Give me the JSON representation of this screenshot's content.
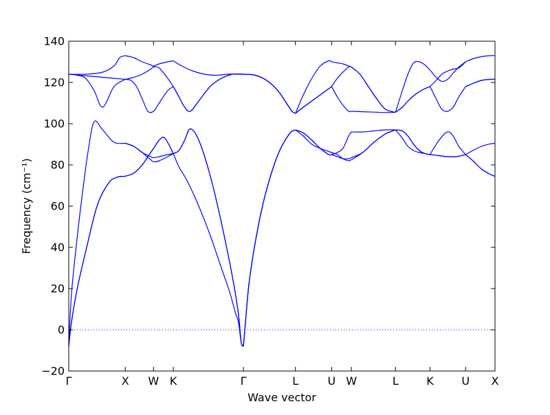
{
  "chart_data": {
    "type": "line",
    "title": "",
    "xlabel": "Wave vector",
    "ylabel": "Frequency (cm⁻¹)",
    "ylim": [
      -20,
      140
    ],
    "yticks": [
      -20,
      0,
      20,
      40,
      60,
      80,
      100,
      120,
      140
    ],
    "xlim": [
      0,
      7.54
    ],
    "xticks": [
      {
        "label": "Γ",
        "x": 0.0
      },
      {
        "label": "X",
        "x": 1.0
      },
      {
        "label": "W",
        "x": 1.5
      },
      {
        "label": "K",
        "x": 1.85
      },
      {
        "label": "Γ",
        "x": 3.09
      },
      {
        "label": "L",
        "x": 4.01
      },
      {
        "label": "U",
        "x": 4.65
      },
      {
        "label": "W",
        "x": 5.0
      },
      {
        "label": "L",
        "x": 5.78
      },
      {
        "label": "K",
        "x": 6.39
      },
      {
        "label": "U",
        "x": 7.02
      },
      {
        "label": "X",
        "x": 7.54
      }
    ],
    "zero_line": {
      "y": 0,
      "style": "dotted"
    },
    "line_color": "#0000ff",
    "grid": false,
    "series": [
      {
        "x": [
          0,
          0.05,
          0.15,
          0.3,
          0.5,
          0.7,
          0.85,
          1.0
        ],
        "y": [
          -8,
          4,
          20,
          38,
          60,
          71,
          74,
          74.5
        ]
      },
      {
        "x": [
          0,
          0.05,
          0.15,
          0.3,
          0.5,
          0.7,
          0.85,
          1.0
        ],
        "y": [
          -8,
          4,
          20,
          38,
          60,
          71,
          74,
          74.5
        ]
      },
      {
        "x": [
          0,
          0.05,
          0.15,
          0.25,
          0.35,
          0.45,
          0.6,
          0.8,
          1.0
        ],
        "y": [
          -8,
          18,
          45,
          68,
          88,
          101,
          97,
          91,
          90.5
        ]
      },
      {
        "x": [
          0,
          0.15,
          0.3,
          0.45,
          0.6,
          0.8,
          1.0
        ],
        "y": [
          124,
          123.5,
          122,
          116,
          108,
          118,
          121.5
        ]
      },
      {
        "x": [
          0,
          0.2,
          0.4,
          0.6,
          0.8,
          1.0
        ],
        "y": [
          124,
          123.5,
          123,
          122.5,
          122,
          121.5
        ]
      },
      {
        "x": [
          0,
          0.3,
          0.6,
          0.8,
          0.9,
          1.0
        ],
        "y": [
          124,
          124,
          125,
          128,
          132,
          133
        ]
      },
      {
        "x": [
          1.0,
          1.15,
          1.3,
          1.4,
          1.5,
          1.6,
          1.7,
          1.85
        ],
        "y": [
          74.5,
          76,
          80,
          84,
          88,
          92,
          93,
          85.5
        ]
      },
      {
        "x": [
          1.0,
          1.15,
          1.3,
          1.4,
          1.5,
          1.6,
          1.7,
          1.85
        ],
        "y": [
          74.5,
          76,
          80,
          84,
          88,
          92,
          93,
          85.5
        ]
      },
      {
        "x": [
          1.0,
          1.15,
          1.3,
          1.45,
          1.5,
          1.6,
          1.75,
          1.85
        ],
        "y": [
          90.5,
          89,
          86,
          82.5,
          81.5,
          82,
          84,
          85.5
        ]
      },
      {
        "x": [
          1.0,
          1.15,
          1.3,
          1.45,
          1.5,
          1.6,
          1.75,
          1.85
        ],
        "y": [
          90.5,
          89,
          86,
          84,
          83.5,
          84,
          85,
          85.5
        ]
      },
      {
        "x": [
          1.0,
          1.1,
          1.2,
          1.3,
          1.4,
          1.5,
          1.6,
          1.75,
          1.85
        ],
        "y": [
          121.5,
          121,
          118,
          112,
          106,
          106,
          110,
          116,
          118
        ]
      },
      {
        "x": [
          1.0,
          1.15,
          1.3,
          1.45,
          1.5,
          1.6,
          1.75,
          1.85
        ],
        "y": [
          121.5,
          122.5,
          124,
          126.5,
          127.5,
          127,
          122,
          118
        ]
      },
      {
        "x": [
          1.0,
          1.15,
          1.3,
          1.45,
          1.5,
          1.6,
          1.75,
          1.85
        ],
        "y": [
          133,
          132,
          130,
          128.5,
          128,
          129,
          130,
          130.5
        ]
      },
      {
        "x": [
          1.85,
          1.95,
          2.05,
          2.15,
          2.3,
          2.5,
          2.7,
          2.9,
          3.0,
          3.05,
          3.09
        ],
        "y": [
          85.5,
          87,
          92,
          97.5,
          92,
          75,
          52,
          25,
          8,
          -6,
          -8
        ]
      },
      {
        "x": [
          1.85,
          1.95,
          2.05,
          2.15,
          2.3,
          2.5,
          2.7,
          2.9,
          3.0,
          3.05,
          3.09
        ],
        "y": [
          85.5,
          87,
          92,
          97.5,
          92,
          75,
          52,
          25,
          8,
          -6,
          -8
        ]
      },
      {
        "x": [
          1.85,
          1.95,
          2.1,
          2.3,
          2.5,
          2.7,
          2.85,
          2.95,
          3.0,
          3.05,
          3.09
        ],
        "y": [
          85.5,
          79,
          72,
          60,
          46,
          30,
          18,
          8,
          4,
          -6,
          -8
        ]
      },
      {
        "x": [
          1.85,
          1.95,
          2.05,
          2.15,
          2.3,
          2.5,
          2.7,
          2.9,
          3.09
        ],
        "y": [
          118,
          113,
          108,
          106,
          111,
          118,
          122,
          124,
          124
        ]
      },
      {
        "x": [
          1.85,
          1.95,
          2.05,
          2.15,
          2.3,
          2.5,
          2.7,
          2.9,
          3.09
        ],
        "y": [
          118,
          113,
          108,
          106,
          111,
          118,
          122,
          124,
          124
        ]
      },
      {
        "x": [
          1.85,
          2.0,
          2.2,
          2.4,
          2.6,
          2.8,
          3.0,
          3.09
        ],
        "y": [
          130.5,
          128,
          125.5,
          124,
          123.5,
          124,
          124,
          124
        ]
      },
      {
        "x": [
          3.09,
          3.13,
          3.2,
          3.35,
          3.5,
          3.7,
          3.9,
          4.01
        ],
        "y": [
          -8,
          5,
          25,
          50,
          68,
          85,
          95,
          97
        ]
      },
      {
        "x": [
          3.09,
          3.13,
          3.2,
          3.35,
          3.5,
          3.7,
          3.9,
          4.01
        ],
        "y": [
          -8,
          5,
          25,
          50,
          68,
          85,
          95,
          97
        ]
      },
      {
        "x": [
          3.09,
          3.13,
          3.2,
          3.35,
          3.5,
          3.7,
          3.9,
          4.01
        ],
        "y": [
          -8,
          5,
          25,
          50,
          68,
          85,
          95,
          97
        ]
      },
      {
        "x": [
          3.09,
          3.3,
          3.5,
          3.7,
          3.85,
          3.95,
          4.01
        ],
        "y": [
          124,
          123.5,
          121,
          116,
          110,
          106,
          105
        ]
      },
      {
        "x": [
          3.09,
          3.3,
          3.5,
          3.7,
          3.85,
          3.95,
          4.01
        ],
        "y": [
          124,
          123.5,
          121,
          116,
          110,
          106,
          105
        ]
      },
      {
        "x": [
          3.09,
          3.3,
          3.5,
          3.7,
          3.85,
          3.95,
          4.01
        ],
        "y": [
          124,
          123.5,
          121,
          116,
          110,
          106,
          105
        ]
      },
      {
        "x": [
          4.01,
          4.15,
          4.3,
          4.45,
          4.6,
          4.65
        ],
        "y": [
          97,
          95.5,
          92,
          88,
          85,
          85
        ]
      },
      {
        "x": [
          4.01,
          4.15,
          4.3,
          4.45,
          4.6,
          4.65
        ],
        "y": [
          97,
          95.5,
          92,
          88,
          85,
          85
        ]
      },
      {
        "x": [
          4.01,
          4.15,
          4.3,
          4.45,
          4.6,
          4.65
        ],
        "y": [
          97,
          94,
          90,
          88,
          86.5,
          86
        ]
      },
      {
        "x": [
          4.01,
          4.15,
          4.3,
          4.45,
          4.6,
          4.65
        ],
        "y": [
          105,
          108,
          111,
          114,
          117,
          118
        ]
      },
      {
        "x": [
          4.01,
          4.15,
          4.3,
          4.45,
          4.6,
          4.65
        ],
        "y": [
          105,
          108,
          111,
          114,
          117,
          118
        ]
      },
      {
        "x": [
          4.01,
          4.15,
          4.3,
          4.45,
          4.6,
          4.65
        ],
        "y": [
          105,
          114,
          122,
          128,
          130.5,
          130
        ]
      },
      {
        "x": [
          4.65,
          4.75,
          4.85,
          4.95,
          5.0
        ],
        "y": [
          85,
          86,
          88,
          94,
          96
        ]
      },
      {
        "x": [
          4.65,
          4.75,
          4.85,
          4.95,
          5.0
        ],
        "y": [
          85,
          84,
          83,
          83,
          83.5
        ]
      },
      {
        "x": [
          4.65,
          4.75,
          4.85,
          4.95,
          5.0
        ],
        "y": [
          86,
          85,
          83,
          82,
          82.5
        ]
      },
      {
        "x": [
          4.65,
          4.75,
          4.85,
          4.95,
          5.0
        ],
        "y": [
          118,
          113,
          109,
          106,
          106
        ]
      },
      {
        "x": [
          4.65,
          4.75,
          4.85,
          4.95,
          5.0
        ],
        "y": [
          118,
          122,
          125,
          127.5,
          127.5
        ]
      },
      {
        "x": [
          4.65,
          4.75,
          4.85,
          4.95,
          5.0
        ],
        "y": [
          130,
          129.5,
          129,
          128,
          127.5
        ]
      },
      {
        "x": [
          5.0,
          5.2,
          5.4,
          5.6,
          5.78
        ],
        "y": [
          96,
          96,
          96.5,
          97,
          97
        ]
      },
      {
        "x": [
          5.0,
          5.2,
          5.4,
          5.6,
          5.78
        ],
        "y": [
          83.5,
          86,
          91,
          95,
          97
        ]
      },
      {
        "x": [
          5.0,
          5.2,
          5.4,
          5.6,
          5.78
        ],
        "y": [
          82.5,
          86,
          91,
          95,
          97
        ]
      },
      {
        "x": [
          5.0,
          5.2,
          5.4,
          5.6,
          5.78
        ],
        "y": [
          106,
          105.8,
          105.6,
          105.4,
          105.5
        ]
      },
      {
        "x": [
          5.0,
          5.15,
          5.3,
          5.45,
          5.6,
          5.78
        ],
        "y": [
          127.5,
          124,
          118,
          112,
          107,
          105.5
        ]
      },
      {
        "x": [
          5.0,
          5.15,
          5.3,
          5.45,
          5.6,
          5.78
        ],
        "y": [
          127.5,
          124,
          118,
          112,
          107,
          105.5
        ]
      },
      {
        "x": [
          5.78,
          5.9,
          6.0,
          6.1,
          6.2,
          6.3,
          6.39
        ],
        "y": [
          97,
          96.5,
          94,
          90,
          87,
          85.5,
          85
        ]
      },
      {
        "x": [
          5.78,
          5.9,
          6.0,
          6.1,
          6.2,
          6.3,
          6.39
        ],
        "y": [
          97,
          93,
          89,
          87,
          86,
          85.5,
          85
        ]
      },
      {
        "x": [
          5.78,
          5.9,
          6.0,
          6.1,
          6.2,
          6.3,
          6.39
        ],
        "y": [
          97,
          96.5,
          94,
          90,
          87,
          85.5,
          85
        ]
      },
      {
        "x": [
          5.78,
          5.9,
          6.0,
          6.1,
          6.2,
          6.3,
          6.39
        ],
        "y": [
          105.5,
          108,
          111,
          113.5,
          115.5,
          117,
          118
        ]
      },
      {
        "x": [
          5.78,
          5.9,
          6.0,
          6.1,
          6.2,
          6.3,
          6.39
        ],
        "y": [
          105.5,
          108,
          111,
          113.5,
          115.5,
          117,
          118
        ]
      },
      {
        "x": [
          5.78,
          5.9,
          6.0,
          6.1,
          6.2,
          6.3,
          6.39
        ],
        "y": [
          105.5,
          116,
          124,
          129.5,
          130,
          128.5,
          126
        ]
      },
      {
        "x": [
          6.39,
          6.55,
          6.7,
          6.8,
          6.9,
          7.02
        ],
        "y": [
          85,
          92,
          96,
          94,
          89,
          85
        ]
      },
      {
        "x": [
          6.39,
          6.55,
          6.7,
          6.85,
          7.02
        ],
        "y": [
          85,
          84.5,
          84,
          84,
          85
        ]
      },
      {
        "x": [
          6.39,
          6.55,
          6.7,
          6.85,
          7.02
        ],
        "y": [
          85,
          84.5,
          84,
          84,
          85
        ]
      },
      {
        "x": [
          6.39,
          6.5,
          6.6,
          6.7,
          6.8,
          6.9,
          7.02
        ],
        "y": [
          118,
          112,
          107,
          106,
          108,
          113,
          118
        ]
      },
      {
        "x": [
          6.39,
          6.5,
          6.6,
          6.7,
          6.8,
          6.9,
          7.02
        ],
        "y": [
          126,
          122.5,
          120.5,
          121.5,
          124.5,
          127.5,
          130
        ]
      },
      {
        "x": [
          6.39,
          6.5,
          6.6,
          6.7,
          6.8,
          6.9,
          7.02
        ],
        "y": [
          118,
          121,
          124,
          125.5,
          126.5,
          127,
          130
        ]
      },
      {
        "x": [
          7.02,
          7.15,
          7.3,
          7.45,
          7.54
        ],
        "y": [
          85,
          82,
          78,
          75.5,
          74.5
        ]
      },
      {
        "x": [
          7.02,
          7.15,
          7.3,
          7.45,
          7.54
        ],
        "y": [
          85,
          82,
          78,
          75.5,
          74.5
        ]
      },
      {
        "x": [
          7.02,
          7.15,
          7.3,
          7.45,
          7.54
        ],
        "y": [
          85,
          87,
          89,
          90.2,
          90.5
        ]
      },
      {
        "x": [
          7.02,
          7.15,
          7.3,
          7.45,
          7.54
        ],
        "y": [
          118,
          119.5,
          121,
          121.5,
          121.5
        ]
      },
      {
        "x": [
          7.02,
          7.15,
          7.3,
          7.45,
          7.54
        ],
        "y": [
          130,
          131.5,
          132.5,
          133,
          133
        ]
      },
      {
        "x": [
          7.02,
          7.15,
          7.3,
          7.45,
          7.54
        ],
        "y": [
          118,
          119.5,
          121,
          121.5,
          121.5
        ]
      }
    ]
  }
}
